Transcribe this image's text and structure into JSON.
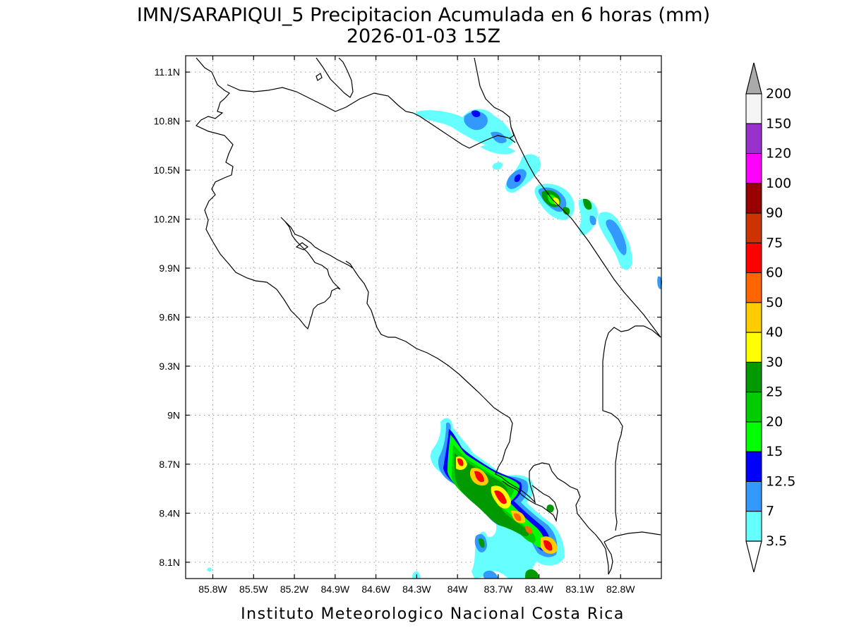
{
  "header": {
    "title": "IMN/SARAPIQUI_5 Precipitacion Acumulada en 6 horas (mm)",
    "subtitle": "2026-01-03 15Z"
  },
  "credit": "Instituto Meteorologico Nacional Costa Rica",
  "map": {
    "lon_range": [
      -86.0,
      -82.5
    ],
    "lat_range": [
      8.0,
      11.2
    ],
    "lat_ticks": [
      "11.1N",
      "10.8N",
      "10.5N",
      "10.2N",
      "9.9N",
      "9.6N",
      "9.3N",
      "9N",
      "8.7N",
      "8.4N",
      "8.1N"
    ],
    "lon_ticks": [
      "85.8W",
      "85.5W",
      "85.2W",
      "84.9W",
      "84.6W",
      "84.3W",
      "84W",
      "83.7W",
      "83.4W",
      "83.1W",
      "82.8W"
    ],
    "grid": true,
    "gridline_style": "dotted"
  },
  "colorbar": {
    "labels": [
      "200",
      "150",
      "120",
      "100",
      "90",
      "75",
      "60",
      "50",
      "40",
      "30",
      "25",
      "20",
      "15",
      "12.5",
      "7",
      "3.5"
    ],
    "colors": [
      "#f5f5f5",
      "#9932cc",
      "#ff00ff",
      "#990000",
      "#cc3300",
      "#ff0000",
      "#ff6600",
      "#ffcc00",
      "#ffff00",
      "#009900",
      "#00cc00",
      "#00ff00",
      "#0000ff",
      "#3399ff",
      "#66ffff"
    ],
    "over_color": "#aaaaaa",
    "under_color": "#ffffff",
    "units": "mm"
  },
  "legend_colors": {
    "c3_5": "#66ffff",
    "c7": "#3399ff",
    "c12_5": "#0000ff",
    "c15": "#00ff00",
    "c20": "#00cc00",
    "c25": "#009900",
    "c30": "#ffff00",
    "c40": "#ffcc00",
    "c50": "#ff6600",
    "c60": "#ff0000"
  }
}
